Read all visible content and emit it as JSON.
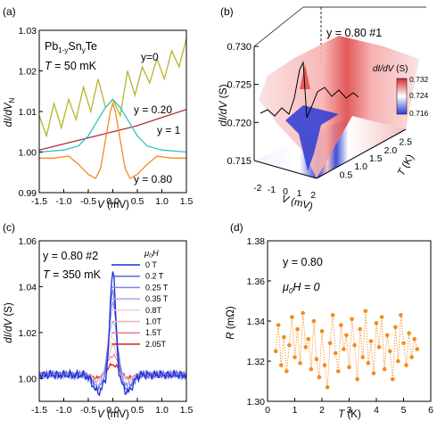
{
  "chart_data": [
    {
      "panel": "(a)",
      "type": "line",
      "annotation": [
        "Pb",
        "1-y",
        "Sn",
        "y",
        "Te"
      ],
      "temperature_label": [
        "T",
        " = 50 mK"
      ],
      "xlabel": [
        "V",
        " (mV)"
      ],
      "ylabel": [
        "dI/dV",
        "N"
      ],
      "xlim": [
        -1.5,
        1.5
      ],
      "ylim": [
        0.99,
        1.03
      ],
      "xticks": [
        "-1.5",
        "-1.0",
        "-0.5",
        "0.0",
        "0.5",
        "1.0",
        "1.5"
      ],
      "yticks": [
        "0.99",
        "1.00",
        "1.01",
        "1.02",
        "1.03"
      ],
      "series": [
        {
          "name": "y=0",
          "color": "#b7b42a",
          "x": [
            -1.5,
            -1.35,
            -1.2,
            -1.05,
            -0.9,
            -0.75,
            -0.6,
            -0.45,
            -0.3,
            -0.15,
            0,
            0.15,
            0.3,
            0.45,
            0.6,
            0.75,
            0.9,
            1.05,
            1.2,
            1.35,
            1.5
          ],
          "y": [
            1.009,
            1.004,
            1.012,
            1.006,
            1.013,
            1.008,
            1.016,
            1.01,
            1.018,
            1.011,
            1.013,
            1.009,
            1.02,
            1.014,
            1.021,
            1.017,
            1.023,
            1.018,
            1.025,
            1.021,
            1.028
          ]
        },
        {
          "name": "y = 0.20",
          "color": "#b52d3a",
          "x": [
            -1.5,
            -1.0,
            -0.5,
            0,
            0.5,
            1.0,
            1.5
          ],
          "y": [
            1.0005,
            1.002,
            1.0035,
            1.005,
            1.0065,
            1.0085,
            1.0105
          ]
        },
        {
          "name": "y = 1",
          "color": "#2ec4c4",
          "x": [
            -1.5,
            -1.0,
            -0.7,
            -0.5,
            -0.3,
            -0.15,
            0,
            0.15,
            0.3,
            0.5,
            0.7,
            1.0,
            1.5
          ],
          "y": [
            1.0,
            1.0005,
            1.0015,
            1.004,
            1.008,
            1.011,
            1.013,
            1.011,
            1.008,
            1.004,
            1.0015,
            1.0005,
            1.0
          ]
        },
        {
          "name": "y = 0.80",
          "color": "#f28c1a",
          "x": [
            -1.5,
            -1.2,
            -0.9,
            -0.7,
            -0.5,
            -0.35,
            -0.25,
            -0.15,
            -0.05,
            0,
            0.05,
            0.15,
            0.25,
            0.35,
            0.5,
            0.7,
            0.9,
            1.2,
            1.5
          ],
          "y": [
            0.9985,
            0.9985,
            0.999,
            0.997,
            0.9945,
            0.9935,
            0.996,
            1.003,
            1.01,
            1.012,
            1.01,
            1.003,
            0.996,
            0.9935,
            0.9945,
            0.997,
            0.999,
            0.9985,
            0.9985
          ]
        }
      ]
    },
    {
      "panel": "(b)",
      "type": "heatmap",
      "title": "y = 0.80 #1",
      "zlabel": "dI/dV (S)",
      "xlabel": [
        "V",
        " (mV)"
      ],
      "ylabel": [
        "T",
        " (K)"
      ],
      "colorbar_title": "dI/dV (S)",
      "colorbar_ticks": [
        "0.732",
        "0.724",
        "0.716"
      ],
      "zticks": [
        "0.730",
        "0.725",
        "0.720",
        "0.715"
      ],
      "xticks": [
        "-2",
        "-1",
        "0",
        "1",
        "2"
      ],
      "yticks": [
        "0.5",
        "1.0",
        "1.5",
        "2.0",
        "2.5"
      ],
      "xlim": [
        -2.5,
        2.5
      ],
      "ylim": [
        0.3,
        2.7
      ],
      "zlim": [
        0.715,
        0.73
      ],
      "colormap": [
        "#2a3bd6",
        "#ffffff",
        "#d62a2a"
      ]
    },
    {
      "panel": "(c)",
      "type": "line",
      "title": "y = 0.80 #2",
      "temperature_label": [
        "T",
        " = 350 mK"
      ],
      "legend_title": [
        "μ",
        "0",
        "H"
      ],
      "xlabel": [
        "V",
        " (mV)"
      ],
      "ylabel": [
        "dI/dV",
        " (S)"
      ],
      "xlim": [
        -1.5,
        1.5
      ],
      "ylim": [
        0.99,
        1.06
      ],
      "xticks": [
        "-1.5",
        "-1.0",
        "-0.5",
        "0.0",
        "0.5",
        "1.0",
        "1.5"
      ],
      "yticks": [
        "1.00",
        "1.02",
        "1.04",
        "1.06"
      ],
      "series": [
        {
          "name": "0 T",
          "color": "#1c2bd6",
          "peak": 1.048,
          "dip": 0.994
        },
        {
          "name": "0.2 T",
          "color": "#5a66e0",
          "peak": 1.038,
          "dip": 0.995
        },
        {
          "name": "0.25 T",
          "color": "#8088e8",
          "peak": 1.032,
          "dip": 0.996
        },
        {
          "name": "0.35 T",
          "color": "#a4aaf0",
          "peak": 1.025,
          "dip": 0.997
        },
        {
          "name": "0.8T",
          "color": "#f2d0d6",
          "peak": 1.018,
          "dip": 0.998
        },
        {
          "name": "1.0T",
          "color": "#eeb0b8",
          "peak": 1.014,
          "dip": 0.999
        },
        {
          "name": "1.5T",
          "color": "#e87a86",
          "peak": 1.01,
          "dip": 0.9995
        },
        {
          "name": "2.05T",
          "color": "#d42020",
          "peak": 1.006,
          "dip": 1.0
        }
      ]
    },
    {
      "panel": "(d)",
      "type": "scatter",
      "annotation": "y = 0.80",
      "field_label": [
        "μ",
        "0",
        "H = 0"
      ],
      "xlabel": [
        "T",
        " (K)"
      ],
      "ylabel": [
        "R",
        " (mΩ)"
      ],
      "xlim": [
        0,
        6
      ],
      "ylim": [
        1.3,
        1.38
      ],
      "xticks": [
        "0",
        "1",
        "2",
        "3",
        "4",
        "5",
        "6"
      ],
      "yticks": [
        "1.30",
        "1.32",
        "1.34",
        "1.36",
        "1.38"
      ],
      "color": "#f28c1a",
      "x": [
        0.3,
        0.4,
        0.5,
        0.6,
        0.7,
        0.8,
        0.9,
        1.0,
        1.1,
        1.2,
        1.3,
        1.4,
        1.5,
        1.6,
        1.7,
        1.8,
        1.9,
        2.0,
        2.1,
        2.2,
        2.3,
        2.4,
        2.5,
        2.6,
        2.7,
        2.8,
        2.9,
        3.0,
        3.1,
        3.2,
        3.3,
        3.4,
        3.5,
        3.6,
        3.7,
        3.8,
        3.9,
        4.0,
        4.1,
        4.2,
        4.3,
        4.4,
        4.5,
        4.6,
        4.7,
        4.8,
        4.9,
        5.0,
        5.1,
        5.2,
        5.3,
        5.4,
        5.5
      ],
      "y": [
        1.325,
        1.338,
        1.318,
        1.332,
        1.315,
        1.328,
        1.342,
        1.322,
        1.336,
        1.319,
        1.344,
        1.327,
        1.331,
        1.316,
        1.34,
        1.321,
        1.312,
        1.335,
        1.318,
        1.307,
        1.329,
        1.343,
        1.324,
        1.315,
        1.338,
        1.326,
        1.333,
        1.317,
        1.341,
        1.328,
        1.311,
        1.336,
        1.322,
        1.345,
        1.319,
        1.33,
        1.314,
        1.339,
        1.327,
        1.342,
        1.316,
        1.333,
        1.325,
        1.311,
        1.337,
        1.32,
        1.343,
        1.329,
        1.318,
        1.334,
        1.322,
        1.331,
        1.326
      ]
    }
  ]
}
